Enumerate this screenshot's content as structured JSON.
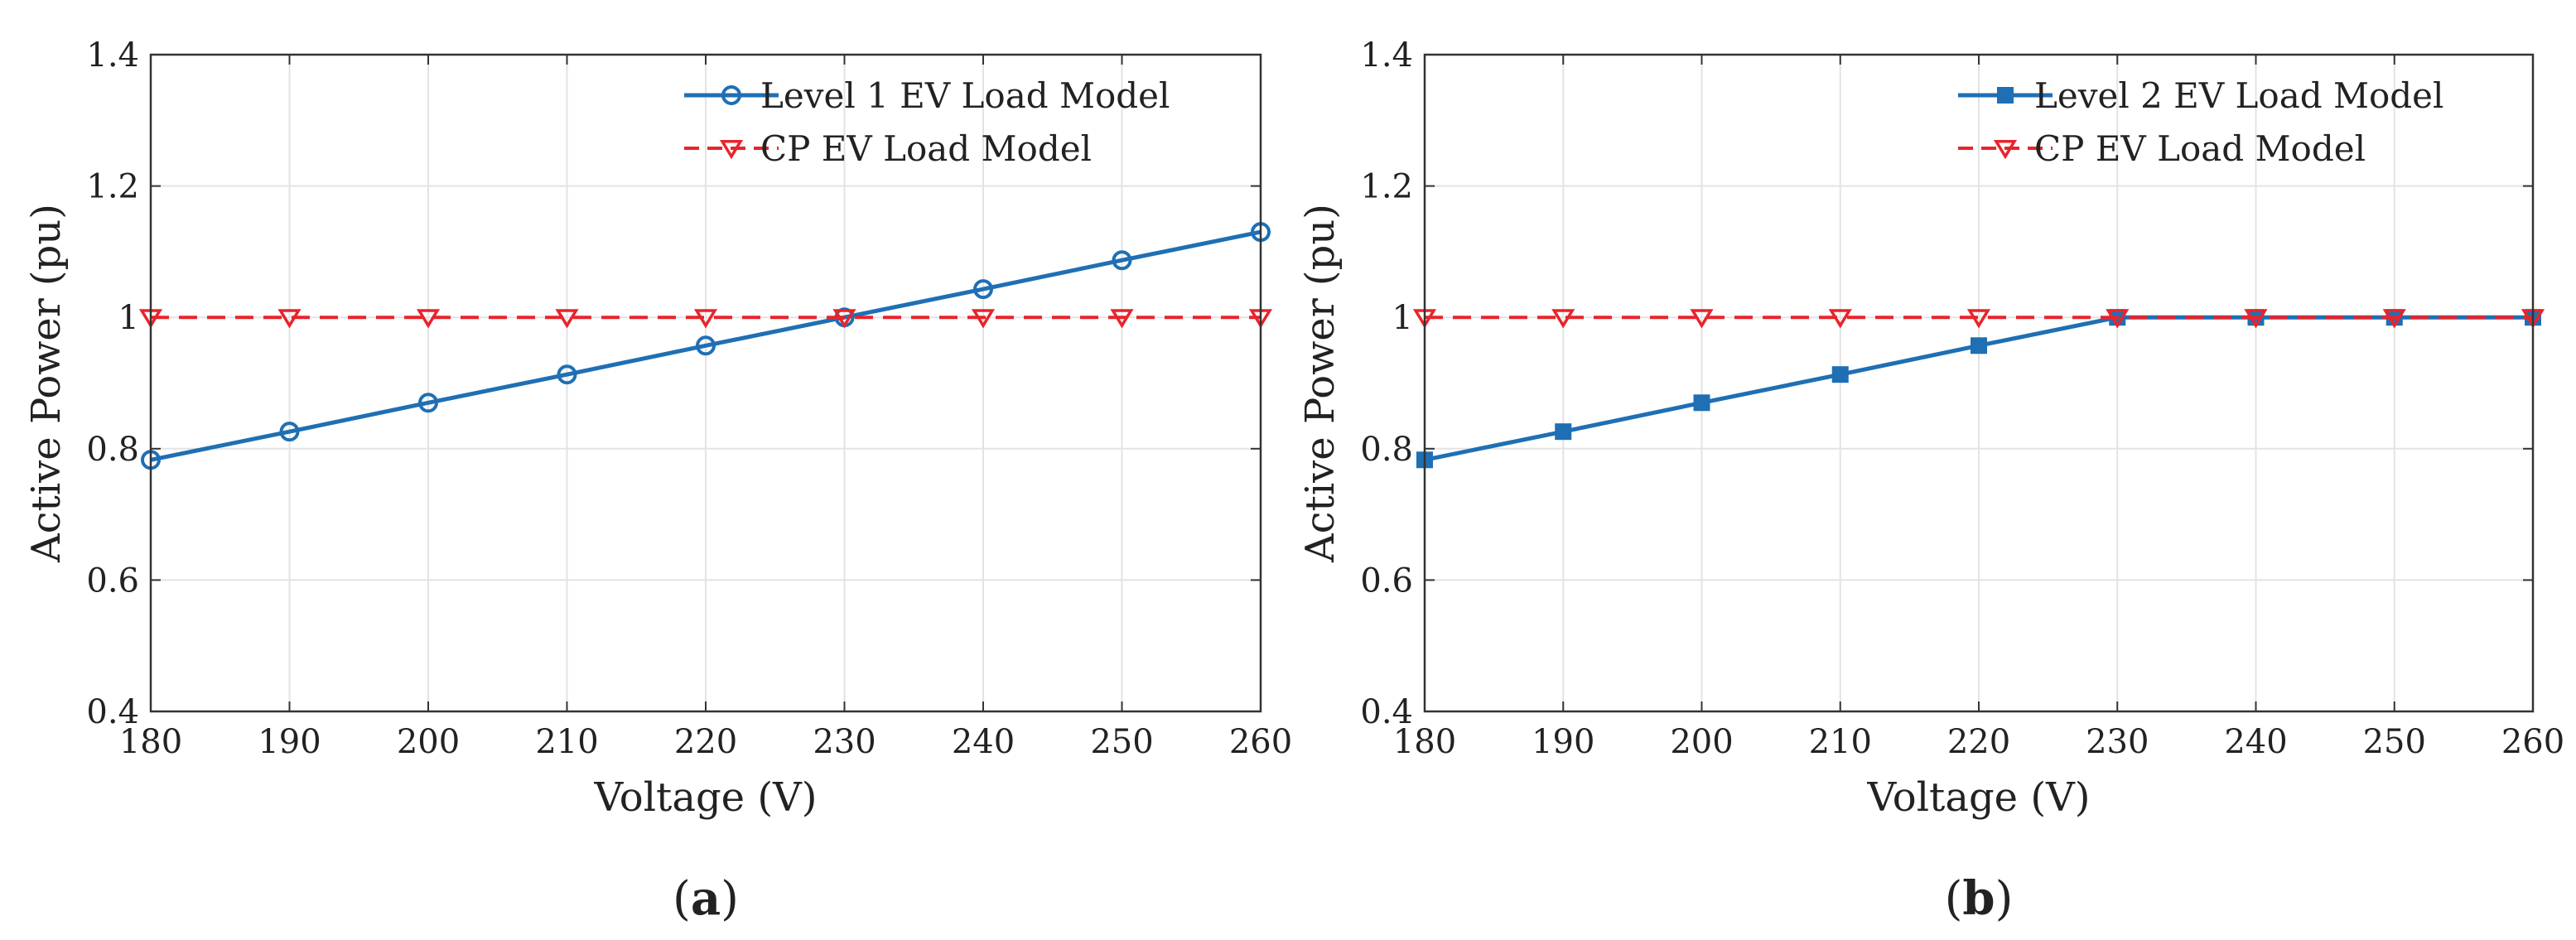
{
  "chart_data": [
    {
      "type": "line",
      "panel_label": "a",
      "x": [
        180,
        190,
        200,
        210,
        220,
        230,
        240,
        250,
        260
      ],
      "series": [
        {
          "name": "Level 1 EV Load Model",
          "values": [
            0.783,
            0.826,
            0.87,
            0.913,
            0.957,
            1.0,
            1.043,
            1.087,
            1.13
          ],
          "color": "#1f6fb4",
          "marker": "circle",
          "dash": "solid"
        },
        {
          "name": "CP EV Load Model",
          "values": [
            1.0,
            1.0,
            1.0,
            1.0,
            1.0,
            1.0,
            1.0,
            1.0,
            1.0
          ],
          "color": "#e8242b",
          "marker": "triangle-down",
          "dash": "dashed"
        }
      ],
      "xlabel": "Voltage (V)",
      "ylabel": "Active Power (pu)",
      "xlim": [
        180,
        260
      ],
      "ylim": [
        0.4,
        1.4
      ],
      "xticks": [
        180,
        190,
        200,
        210,
        220,
        230,
        240,
        250,
        260
      ],
      "yticks": [
        0.4,
        0.6,
        0.8,
        1.0,
        1.2,
        1.4
      ],
      "ytick_labels": [
        "0.4",
        "0.6",
        "0.8",
        "1",
        "1.2",
        "1.4"
      ],
      "grid": true,
      "legend_position": "top-right"
    },
    {
      "type": "line",
      "panel_label": "b",
      "x": [
        180,
        190,
        200,
        210,
        220,
        230,
        240,
        250,
        260
      ],
      "series": [
        {
          "name": "Level 2 EV Load Model",
          "values": [
            0.783,
            0.826,
            0.87,
            0.913,
            0.957,
            1.0,
            1.0,
            1.0,
            1.0
          ],
          "color": "#1f6fb4",
          "marker": "square",
          "dash": "solid"
        },
        {
          "name": "CP EV Load Model",
          "values": [
            1.0,
            1.0,
            1.0,
            1.0,
            1.0,
            1.0,
            1.0,
            1.0,
            1.0
          ],
          "color": "#e8242b",
          "marker": "triangle-down",
          "dash": "dashed"
        }
      ],
      "xlabel": "Voltage (V)",
      "ylabel": "Active Power (pu)",
      "xlim": [
        180,
        260
      ],
      "ylim": [
        0.4,
        1.4
      ],
      "xticks": [
        180,
        190,
        200,
        210,
        220,
        230,
        240,
        250,
        260
      ],
      "yticks": [
        0.4,
        0.6,
        0.8,
        1.0,
        1.2,
        1.4
      ],
      "ytick_labels": [
        "0.4",
        "0.6",
        "0.8",
        "1",
        "1.2",
        "1.4"
      ],
      "grid": true,
      "legend_position": "top-right"
    }
  ]
}
